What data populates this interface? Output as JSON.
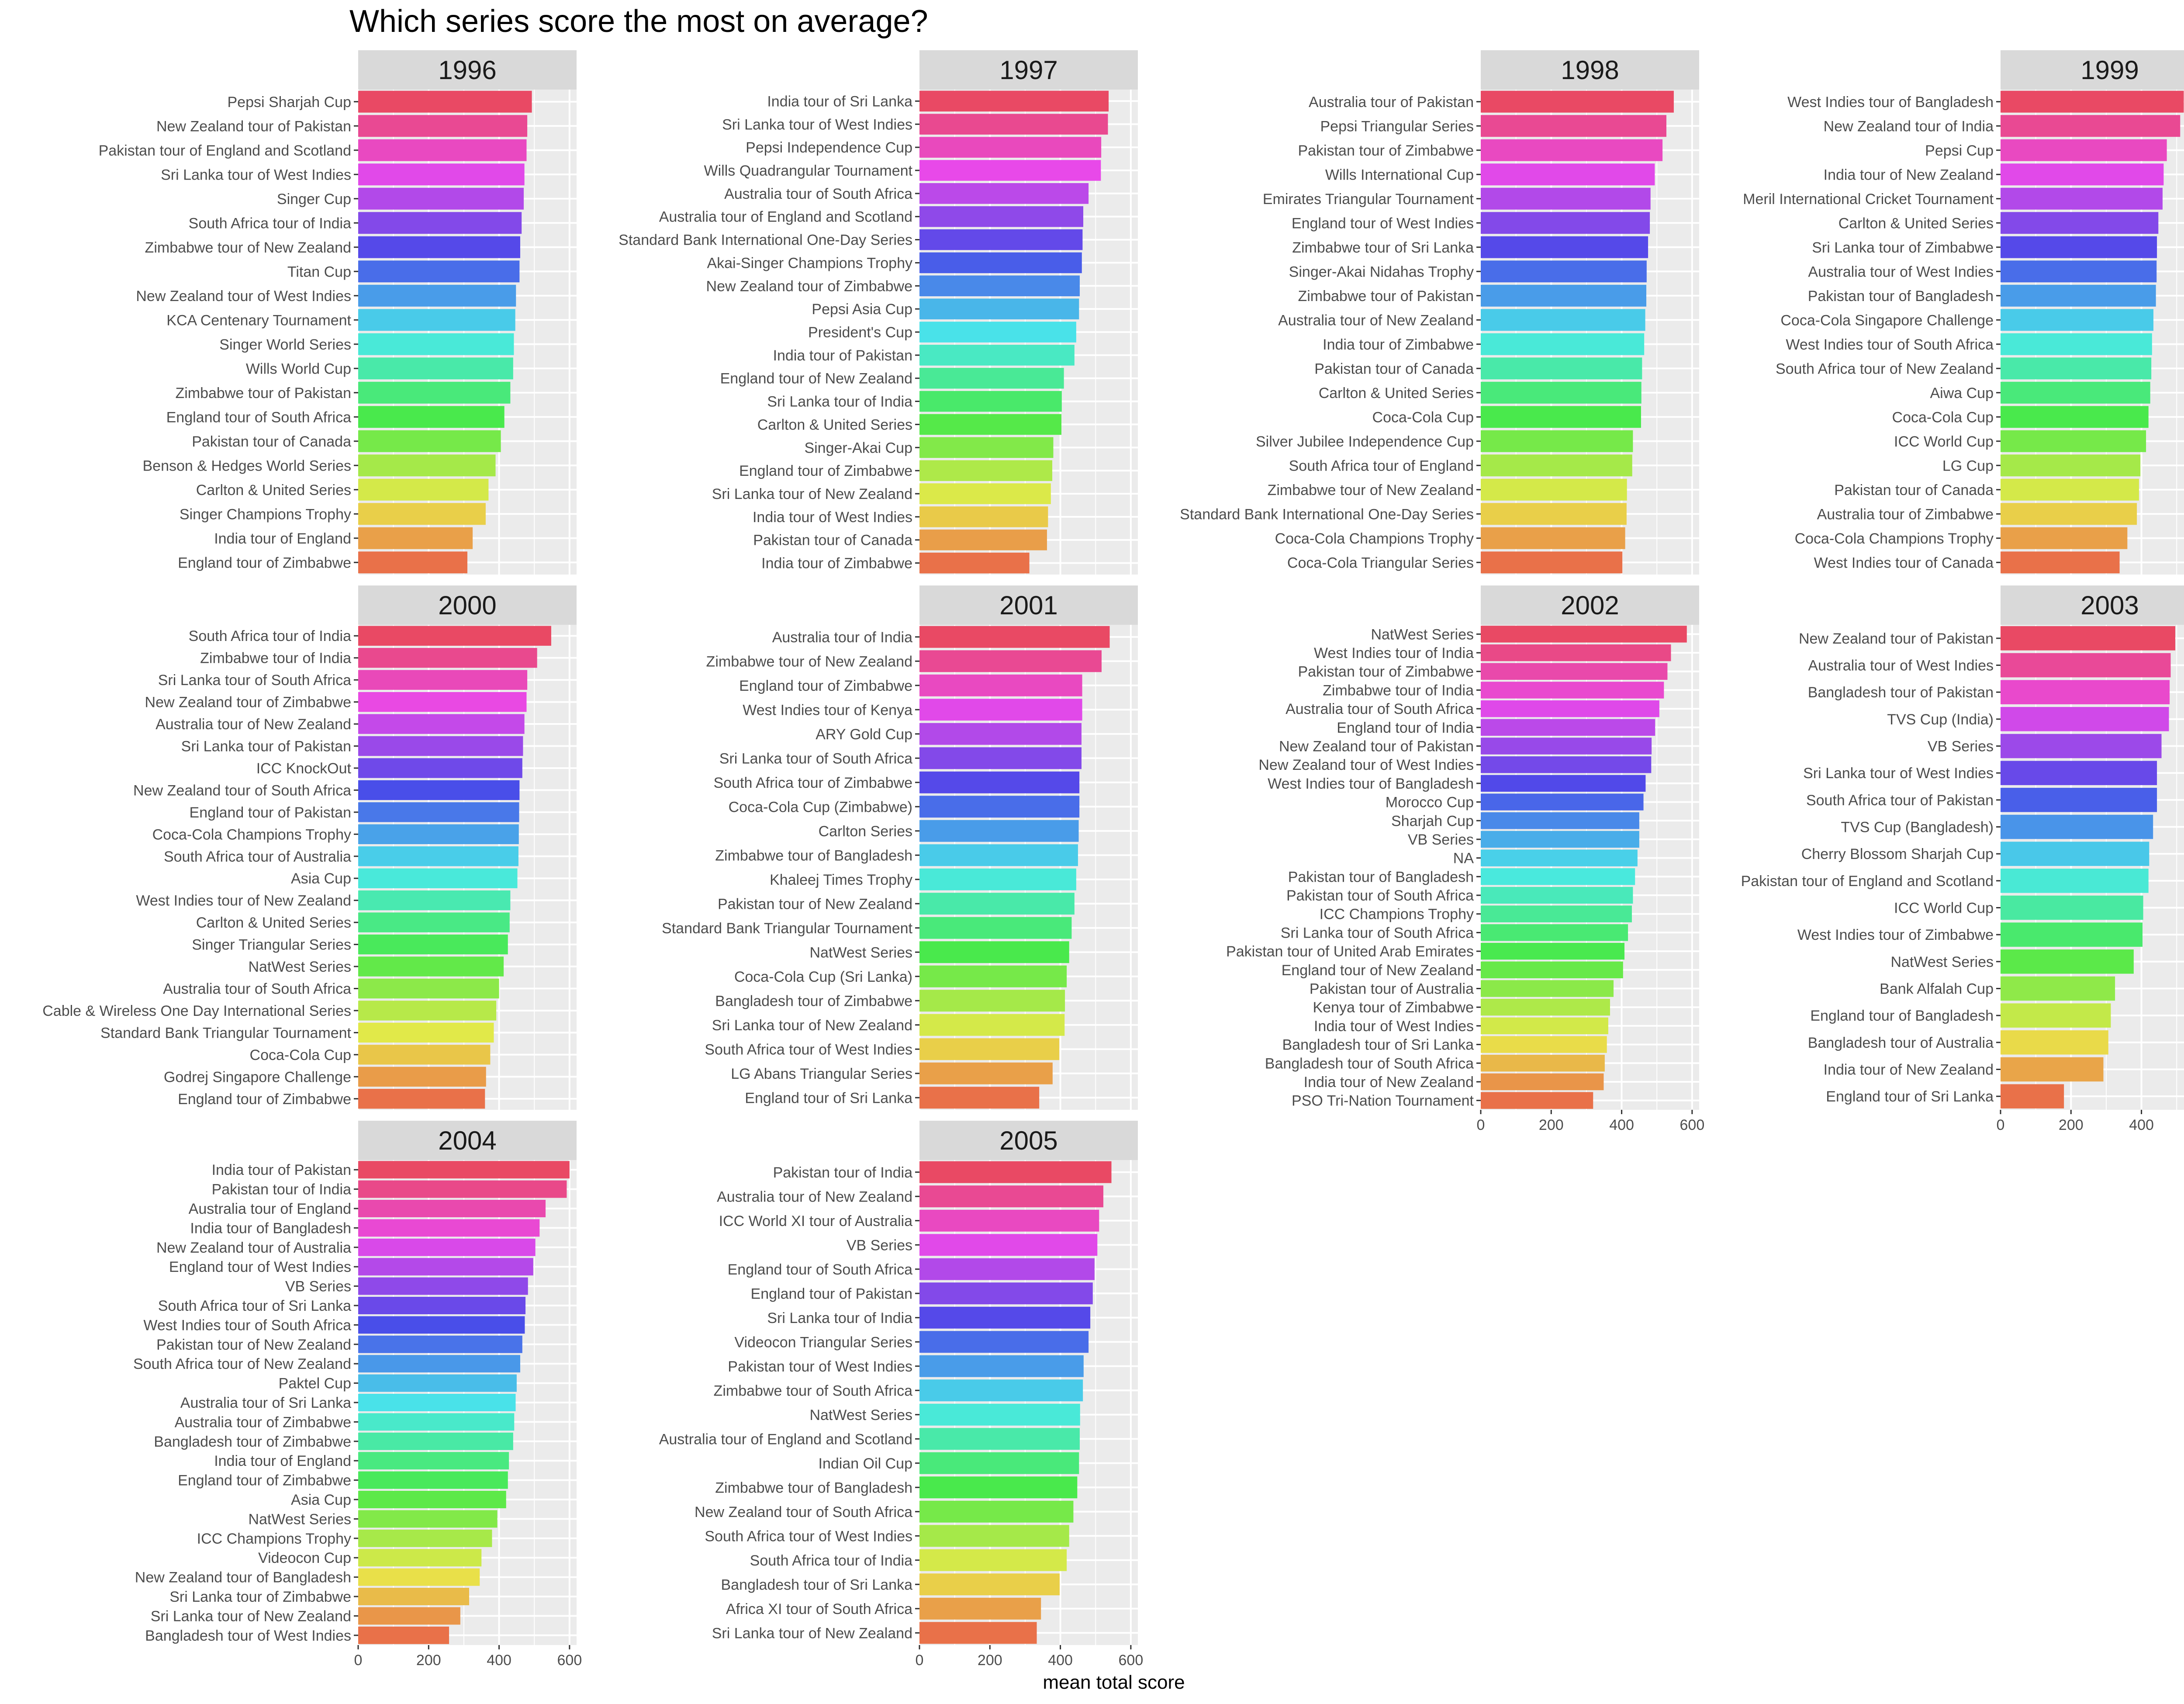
{
  "title": "Which series score the most on average?",
  "chart_data": {
    "type": "bar",
    "orientation": "horizontal",
    "facet_by": "year",
    "xlabel": "mean total score",
    "ylabel": "",
    "xlim": [
      0,
      620
    ],
    "x_ticks": [
      0,
      200,
      400,
      600
    ],
    "grid": true,
    "legend": "none",
    "panels": [
      {
        "year": "1996",
        "categories": [
          "Pepsi Sharjah Cup",
          "New Zealand tour of Pakistan",
          "Pakistan tour of England and Scotland",
          "Sri Lanka tour of West Indies",
          "Singer Cup",
          "South Africa tour of India",
          "Zimbabwe tour of New Zealand",
          "Titan Cup",
          "New Zealand tour of West Indies",
          "KCA Centenary Tournament",
          "Singer World Series",
          "Wills World Cup",
          "Zimbabwe tour of Pakistan",
          "England tour of South Africa",
          "Pakistan tour of Canada",
          "Benson & Hedges World Series",
          "Carlton & United Series",
          "Singer Champions Trophy",
          "India tour of England",
          "England tour of Zimbabwe"
        ],
        "values": [
          493,
          480,
          478,
          472,
          470,
          464,
          460,
          458,
          448,
          446,
          442,
          440,
          432,
          415,
          405,
          390,
          370,
          362,
          325,
          310
        ]
      },
      {
        "year": "1997",
        "categories": [
          "India tour of Sri Lanka",
          "Sri Lanka tour of West Indies",
          "Pepsi Independence Cup",
          "Wills Quadrangular Tournament",
          "Australia tour of South Africa",
          "Australia tour of England and Scotland",
          "Standard Bank International One-Day Series",
          "Akai-Singer Champions Trophy",
          "New Zealand tour of Zimbabwe",
          "Pepsi Asia Cup",
          "President's Cup",
          "India tour of Pakistan",
          "England tour of New Zealand",
          "Sri Lanka tour of India",
          "Carlton & United Series",
          "Singer-Akai Cup",
          "England tour of Zimbabwe",
          "Sri Lanka tour of New Zealand",
          "India tour of West Indies",
          "Pakistan tour of Canada",
          "India tour of Zimbabwe"
        ],
        "values": [
          537,
          535,
          516,
          515,
          480,
          465,
          463,
          461,
          455,
          453,
          445,
          440,
          410,
          404,
          403,
          380,
          377,
          373,
          365,
          362,
          312
        ]
      },
      {
        "year": "1998",
        "categories": [
          "Australia tour of Pakistan",
          "Pepsi Triangular Series",
          "Pakistan tour of Zimbabwe",
          "Wills International Cup",
          "Emirates Triangular Tournament",
          "England tour of West Indies",
          "Zimbabwe tour of Sri Lanka",
          "Singer-Akai Nidahas Trophy",
          "Zimbabwe tour of Pakistan",
          "Australia tour of New Zealand",
          "India tour of Zimbabwe",
          "Pakistan tour of Canada",
          "Carlton & United Series",
          "Coca-Cola Cup",
          "Silver Jubilee Independence Cup",
          "South Africa tour of England",
          "Zimbabwe tour of New Zealand",
          "Standard Bank International One-Day Series",
          "Coca-Cola Champions Trophy",
          "Coca-Cola Triangular Series"
        ],
        "values": [
          548,
          527,
          516,
          494,
          482,
          480,
          475,
          471,
          470,
          467,
          464,
          458,
          456,
          455,
          432,
          430,
          415,
          414,
          410,
          402
        ]
      },
      {
        "year": "1999",
        "categories": [
          "West Indies tour of Bangladesh",
          "New Zealand tour of India",
          "Pepsi Cup",
          "India tour of New Zealand",
          "Meril International Cricket Tournament",
          "Carlton & United Series",
          "Sri Lanka tour of Zimbabwe",
          "Australia tour of West Indies",
          "Pakistan tour of Bangladesh",
          "Coca-Cola Singapore Challenge",
          "West Indies tour of South Africa",
          "South Africa tour of New Zealand",
          "Aiwa Cup",
          "Coca-Cola Cup",
          "ICC World Cup",
          "LG Cup",
          "Pakistan tour of Canada",
          "Australia tour of Zimbabwe",
          "Coca-Cola Champions Trophy",
          "West Indies tour of Canada"
        ],
        "values": [
          520,
          510,
          472,
          463,
          460,
          448,
          444,
          443,
          441,
          434,
          430,
          428,
          425,
          420,
          413,
          397,
          393,
          387,
          360,
          338
        ]
      },
      {
        "year": "2000",
        "categories": [
          "South Africa tour of India",
          "Zimbabwe tour of India",
          "Sri Lanka tour of South Africa",
          "New Zealand tour of Zimbabwe",
          "Australia tour of New Zealand",
          "Sri Lanka tour of Pakistan",
          "ICC KnockOut",
          "New Zealand tour of South Africa",
          "England tour of Pakistan",
          "Coca-Cola Champions Trophy",
          "South Africa tour of Australia",
          "Asia Cup",
          "West Indies tour of New Zealand",
          "Carlton & United Series",
          "Singer Triangular Series",
          "NatWest Series",
          "Australia tour of South Africa",
          "Cable & Wireless One Day International Series",
          "Standard Bank Triangular Tournament",
          "Coca-Cola Cup",
          "Godrej Singapore Challenge",
          "England tour of Zimbabwe"
        ],
        "values": [
          548,
          508,
          480,
          478,
          472,
          468,
          466,
          458,
          457,
          456,
          455,
          452,
          432,
          430,
          425,
          413,
          400,
          392,
          385,
          375,
          363,
          360
        ]
      },
      {
        "year": "2001",
        "categories": [
          "Australia tour of India",
          "Zimbabwe tour of New Zealand",
          "England tour of Zimbabwe",
          "West Indies tour of Kenya",
          "ARY Gold Cup",
          "Sri Lanka tour of South Africa",
          "South Africa tour of Zimbabwe",
          "Coca-Cola Cup (Zimbabwe)",
          "Carlton Series",
          "Zimbabwe tour of Bangladesh",
          "Khaleej Times Trophy",
          "Pakistan tour of New Zealand",
          "Standard Bank Triangular Tournament",
          "NatWest Series",
          "Coca-Cola Cup (Sri Lanka)",
          "Bangladesh tour of Zimbabwe",
          "Sri Lanka tour of New Zealand",
          "South Africa tour of West Indies",
          "LG Abans Triangular Series",
          "England tour of Sri Lanka"
        ],
        "values": [
          540,
          517,
          462,
          462,
          460,
          460,
          454,
          454,
          452,
          450,
          445,
          440,
          432,
          425,
          418,
          413,
          412,
          397,
          378,
          340
        ]
      },
      {
        "year": "2002",
        "categories": [
          "NatWest Series",
          "West Indies tour of India",
          "Pakistan tour of Zimbabwe",
          "Zimbabwe tour of India",
          "Australia tour of South Africa",
          "England tour of India",
          "New Zealand tour of Pakistan",
          "New Zealand tour of West Indies",
          "West Indies tour of Bangladesh",
          "Morocco Cup",
          "Sharjah Cup",
          "VB Series",
          "NA",
          "Pakistan tour of Bangladesh",
          "Pakistan tour of South Africa",
          "ICC Champions Trophy",
          "Sri Lanka tour of South Africa",
          "Pakistan tour of United Arab Emirates",
          "England tour of New Zealand",
          "Pakistan tour of Australia",
          "Kenya tour of Zimbabwe",
          "India tour of West Indies",
          "Bangladesh tour of Sri Lanka",
          "Bangladesh tour of South Africa",
          "India tour of New Zealand",
          "PSO Tri-Nation Tournament"
        ],
        "values": [
          585,
          540,
          530,
          520,
          507,
          495,
          485,
          484,
          468,
          462,
          450,
          450,
          445,
          438,
          432,
          429,
          418,
          408,
          404,
          377,
          367,
          362,
          358,
          352,
          349,
          319
        ]
      },
      {
        "year": "2003",
        "categories": [
          "New Zealand tour of Pakistan",
          "Australia tour of West Indies",
          "Bangladesh tour of Pakistan",
          "TVS Cup (India)",
          "VB Series",
          "Sri Lanka tour of West Indies",
          "South Africa tour of Pakistan",
          "TVS Cup (Bangladesh)",
          "Cherry Blossom Sharjah Cup",
          "Pakistan tour of England and Scotland",
          "ICC World Cup",
          "West Indies tour of Zimbabwe",
          "NatWest Series",
          "Bank Alfalah Cup",
          "England tour of Bangladesh",
          "Bangladesh tour of Australia",
          "India tour of New Zealand",
          "England tour of Sri Lanka"
        ],
        "values": [
          496,
          483,
          480,
          478,
          457,
          444,
          444,
          433,
          422,
          420,
          405,
          403,
          378,
          325,
          313,
          306,
          292,
          180
        ]
      },
      {
        "year": "2004",
        "categories": [
          "India tour of Pakistan",
          "Pakistan tour of India",
          "Australia tour of England",
          "India tour of Bangladesh",
          "New Zealand tour of Australia",
          "England tour of West Indies",
          "VB Series",
          "South Africa tour of Sri Lanka",
          "West Indies tour of South Africa",
          "Pakistan tour of New Zealand",
          "South Africa tour of New Zealand",
          "Paktel Cup",
          "Australia tour of Sri Lanka",
          "Australia tour of Zimbabwe",
          "Bangladesh tour of Zimbabwe",
          "India tour of England",
          "England tour of Zimbabwe",
          "Asia Cup",
          "NatWest Series",
          "ICC Champions Trophy",
          "Videocon Cup",
          "New Zealand tour of Bangladesh",
          "Sri Lanka tour of Zimbabwe",
          "Sri Lanka tour of New Zealand",
          "Bangladesh tour of West Indies"
        ],
        "values": [
          600,
          592,
          532,
          515,
          503,
          497,
          482,
          475,
          473,
          466,
          460,
          450,
          447,
          443,
          440,
          428,
          425,
          420,
          395,
          380,
          350,
          345,
          315,
          290,
          258
        ]
      },
      {
        "year": "2005",
        "categories": [
          "Pakistan tour of India",
          "Australia tour of New Zealand",
          "ICC World XI tour of Australia",
          "VB Series",
          "England tour of South Africa",
          "England tour of Pakistan",
          "Sri Lanka tour of India",
          "Videocon Triangular Series",
          "Pakistan tour of West Indies",
          "Zimbabwe tour of South Africa",
          "NatWest Series",
          "Australia tour of England and Scotland",
          "Indian Oil Cup",
          "Zimbabwe tour of Bangladesh",
          "New Zealand tour of South Africa",
          "South Africa tour of West Indies",
          "South Africa tour of India",
          "Bangladesh tour of Sri Lanka",
          "Africa XI tour of South Africa",
          "Sri Lanka tour of New Zealand"
        ],
        "values": [
          545,
          522,
          510,
          505,
          497,
          492,
          485,
          480,
          466,
          464,
          456,
          455,
          453,
          448,
          437,
          425,
          418,
          398,
          345,
          333
        ]
      }
    ]
  }
}
